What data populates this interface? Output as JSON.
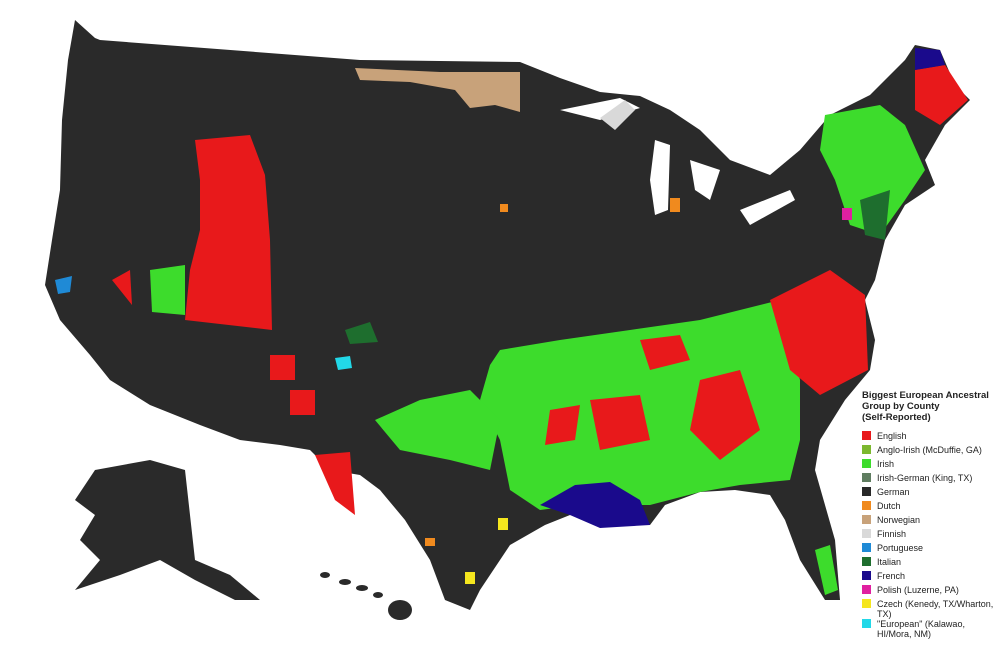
{
  "legend": {
    "title_lines": [
      "Biggest European Ancestral",
      "Group by County",
      "(Self-Reported)"
    ],
    "entries": [
      {
        "label": "English",
        "color": "#e8191b"
      },
      {
        "label": "Anglo-Irish (McDuffie, GA)",
        "color": "#7cb82f"
      },
      {
        "label": "Irish",
        "color": "#3ddc2c"
      },
      {
        "label": "Irish-German (King, TX)",
        "color": "#5f7d60"
      },
      {
        "label": "German",
        "color": "#282828"
      },
      {
        "label": "Dutch",
        "color": "#f08a1e"
      },
      {
        "label": "Norwegian",
        "color": "#c8a27a"
      },
      {
        "label": "Finnish",
        "color": "#d9d9d9"
      },
      {
        "label": "Portuguese",
        "color": "#1f8ad6"
      },
      {
        "label": "Italian",
        "color": "#1e6e2e"
      },
      {
        "label": "French",
        "color": "#1a0a8c"
      },
      {
        "label": "Polish (Luzerne, PA)",
        "color": "#e020a0"
      },
      {
        "label": "Czech (Kenedy, TX/Wharton, TX)",
        "color": "#f5e61e"
      },
      {
        "label": "\"European\" (Kalawao, HI/Mora, NM)",
        "color": "#22d8e8"
      }
    ]
  }
}
